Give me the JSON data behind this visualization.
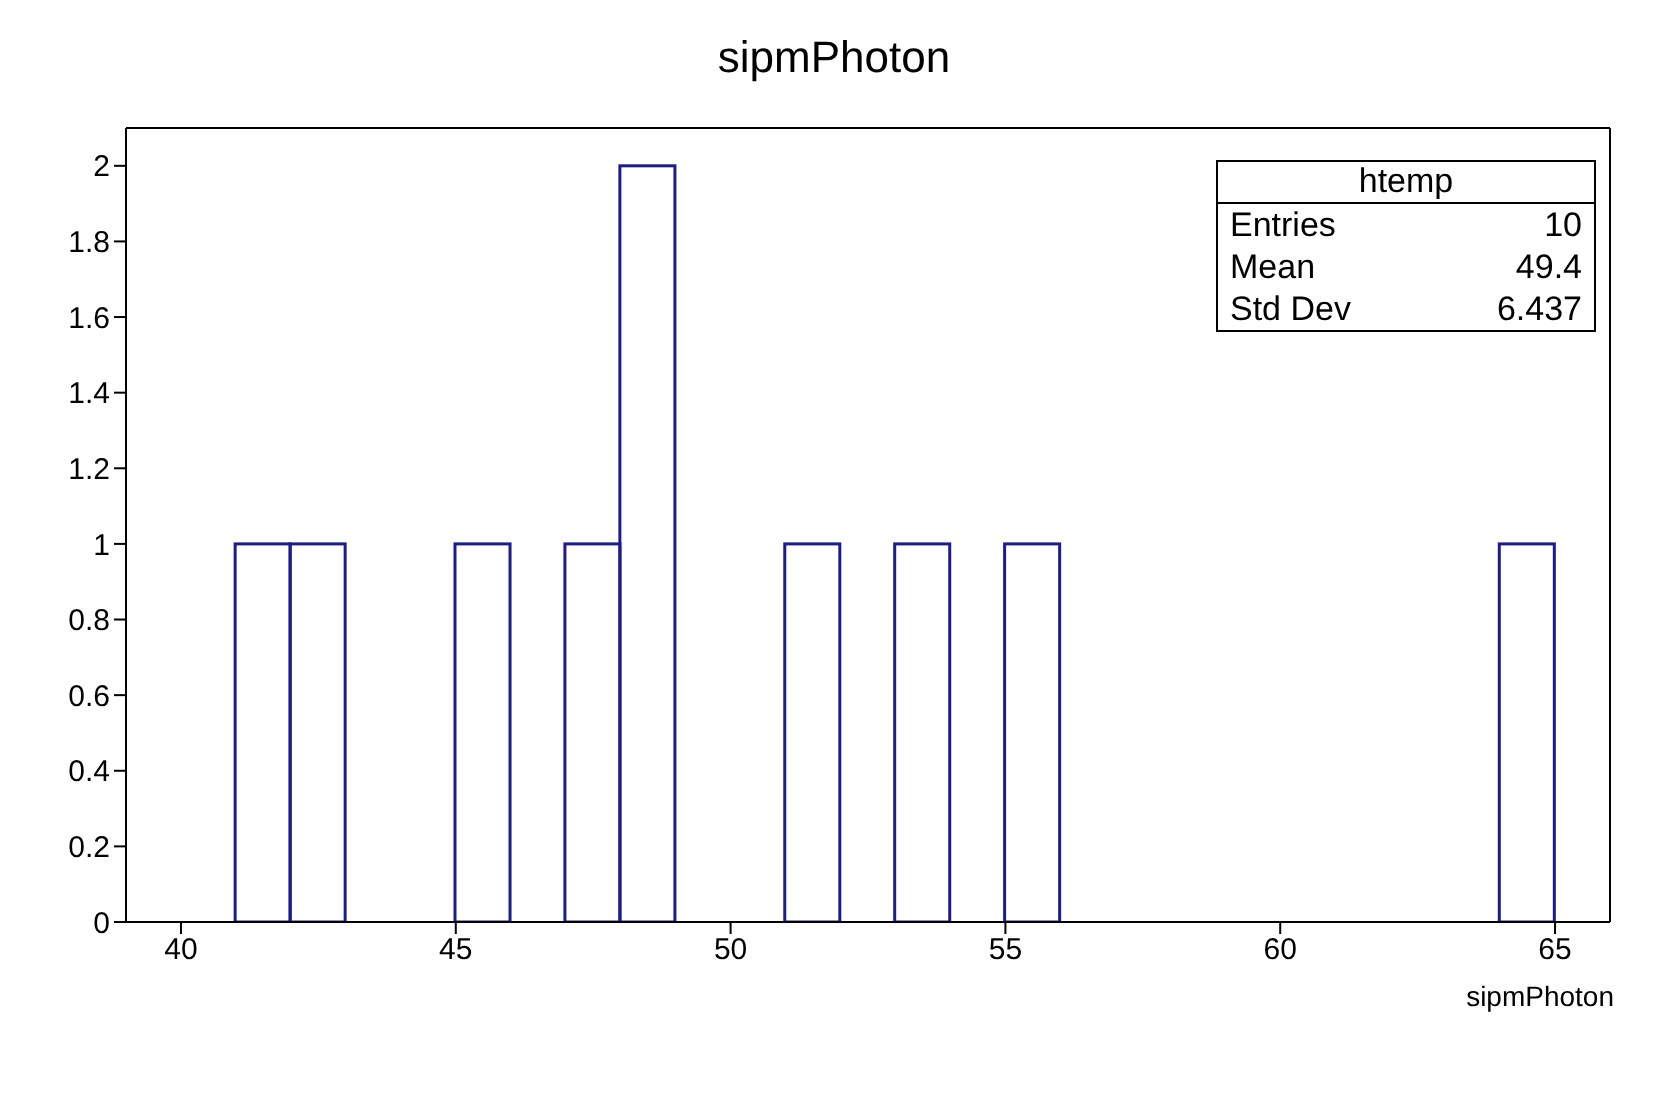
{
  "chart_data": {
    "type": "histogram",
    "title": "sipmPhoton",
    "xlabel": "sipmPhoton",
    "bins": [
      39,
      40,
      41,
      42,
      43,
      44,
      45,
      46,
      47,
      48,
      49,
      50,
      51,
      52,
      53,
      54,
      55,
      56,
      57,
      58,
      59,
      60,
      61,
      62,
      63,
      64,
      65,
      66
    ],
    "values": [
      0,
      0,
      1,
      1,
      0,
      0,
      1,
      0,
      1,
      2,
      0,
      0,
      1,
      0,
      1,
      0,
      1,
      0,
      0,
      0,
      0,
      0,
      0,
      0,
      0,
      1,
      0
    ],
    "color": "#1c1c8c",
    "xlim": [
      39,
      66
    ],
    "xticks": [
      40,
      45,
      50,
      55,
      60,
      65
    ],
    "ylim": [
      0,
      2.1
    ],
    "yticks": [
      0,
      0.2,
      0.4,
      0.6,
      0.8,
      1,
      1.2,
      1.4,
      1.6,
      1.8,
      2
    ],
    "grid": false,
    "annotations": [
      "htemp",
      "Entries",
      "10",
      "Mean",
      "49.4",
      "Std Dev",
      "6.437"
    ]
  }
}
